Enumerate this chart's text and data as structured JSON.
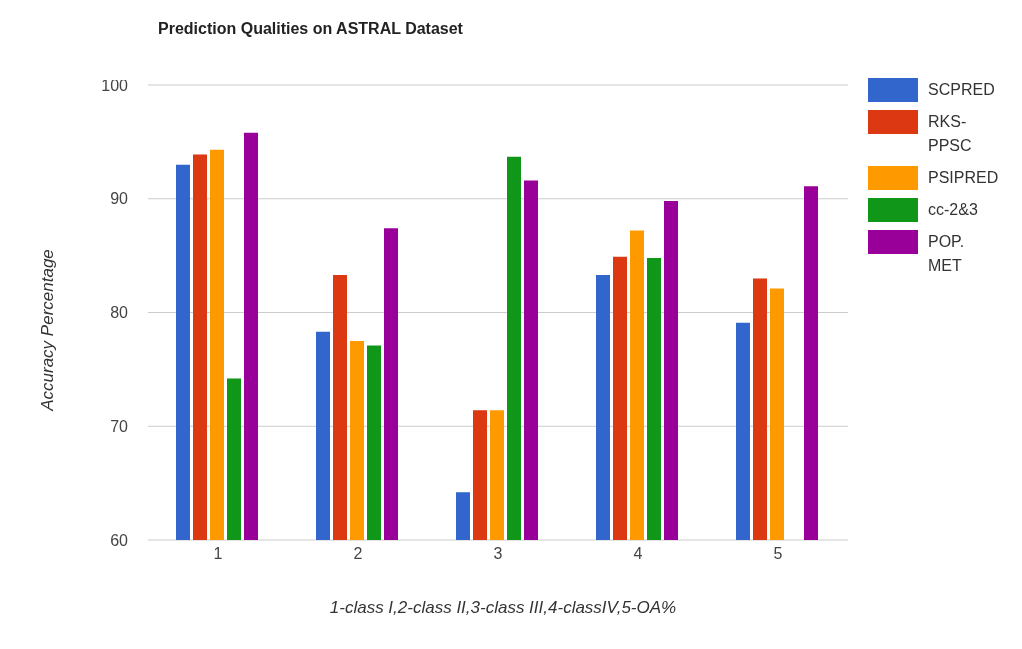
{
  "chart_data": {
    "type": "bar",
    "title": "Prediction Qualities on ASTRAL Dataset",
    "xlabel": "1-class I,2-class II,3-class III,4-classIV,5-OA%",
    "ylabel": "Accuracy Percentage",
    "categories": [
      "1",
      "2",
      "3",
      "4",
      "5"
    ],
    "series": [
      {
        "name": "SCPRED",
        "color": "#3366cc",
        "values": [
          93.0,
          78.3,
          64.2,
          83.3,
          79.1
        ]
      },
      {
        "name": "RKS-PPSC",
        "color": "#dc3912",
        "values": [
          93.9,
          83.3,
          71.4,
          84.9,
          83.0
        ]
      },
      {
        "name": "PSIPRED",
        "color": "#ff9900",
        "values": [
          94.3,
          77.5,
          71.4,
          87.2,
          82.1
        ]
      },
      {
        "name": "cc-2&3",
        "color": "#109618",
        "values": [
          74.2,
          77.1,
          93.7,
          84.8,
          null
        ]
      },
      {
        "name": "POP. MET",
        "color": "#990099",
        "values": [
          95.8,
          87.4,
          91.6,
          89.8,
          91.1
        ]
      }
    ],
    "ylim": [
      60,
      100
    ],
    "yticks": [
      60,
      70,
      80,
      90,
      100
    ],
    "grid": "y",
    "legend": "top right"
  }
}
